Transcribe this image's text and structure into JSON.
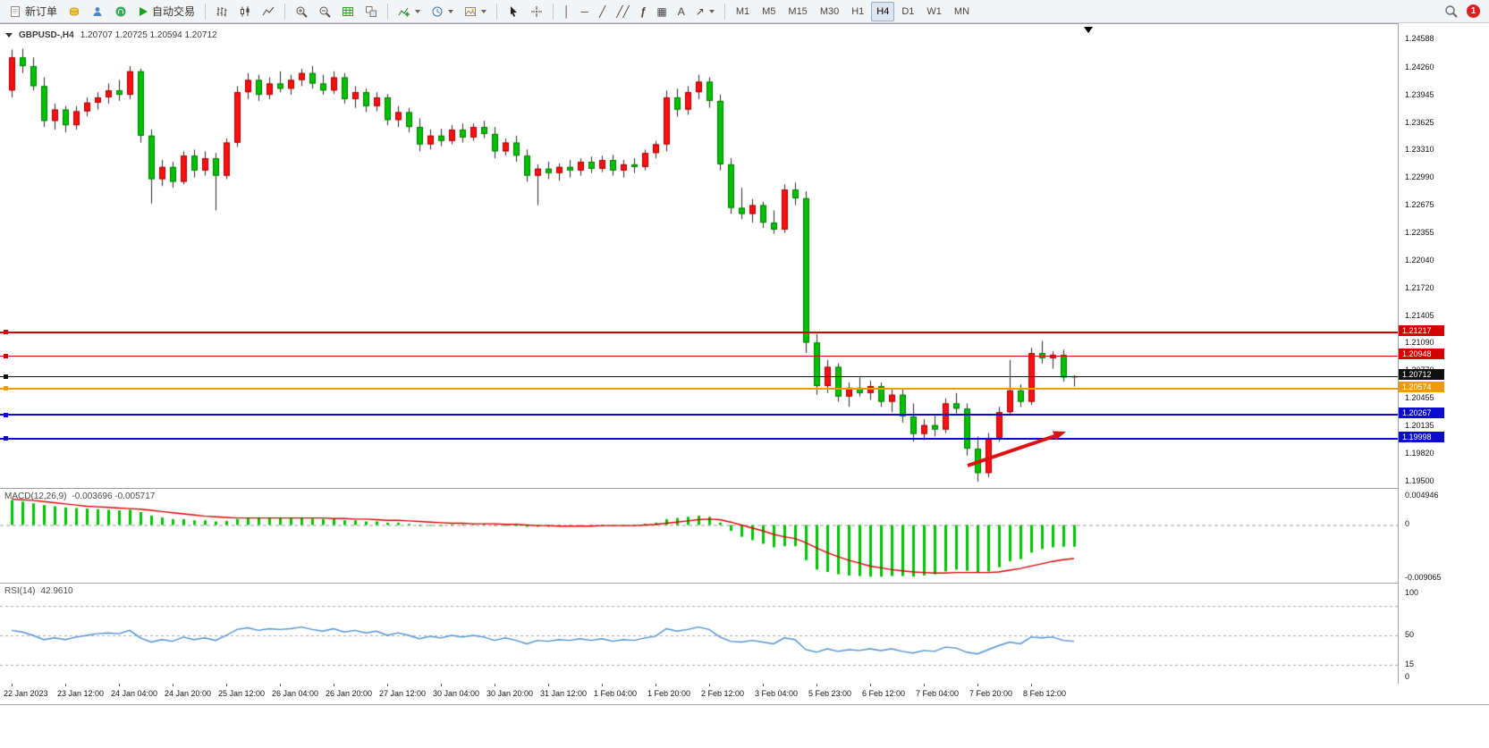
{
  "toolbar": {
    "new_order": "新订单",
    "auto_trading": "自动交易",
    "timeframes": [
      "M1",
      "M5",
      "M15",
      "M30",
      "H1",
      "H4",
      "D1",
      "W1",
      "MN"
    ],
    "active_timeframe": "H4",
    "notification_badge": "1"
  },
  "icons": {
    "vertical_line_glyph": "│",
    "horizontal_line_glyph": "─",
    "trendline_glyph": "╱",
    "channel_glyph": "╱╱",
    "fibonacci_glyph": "ƒ",
    "grid_glyph": "▦",
    "text_glyph": "A",
    "arrow_glyph": "↗"
  },
  "colors": {
    "bull": "#fe1010",
    "bear": "#00c400",
    "bull_border": "#a00000",
    "bear_border": "#007800",
    "wick": "#2a2a2a"
  },
  "chart_data": [
    {
      "type": "candlestick",
      "title": "GBPUSD-,H4",
      "ohlc_text": "1.20707 1.20725 1.20594 1.20712",
      "ylim": [
        1.195,
        1.24588
      ],
      "y_ticks": [
        "1.24588",
        "1.24260",
        "1.23945",
        "1.23625",
        "1.23310",
        "1.22990",
        "1.22675",
        "1.22355",
        "1.22040",
        "1.21720",
        "1.21405",
        "1.21090",
        "1.20770",
        "1.20455",
        "1.20135",
        "1.19820",
        "1.19500"
      ],
      "x_labels": [
        "22 Jan 2023",
        "23 Jan 12:00",
        "24 Jan 04:00",
        "24 Jan 20:00",
        "25 Jan 12:00",
        "26 Jan 04:00",
        "26 Jan 20:00",
        "27 Jan 12:00",
        "30 Jan 04:00",
        "30 Jan 20:00",
        "31 Jan 12:00",
        "1 Feb 04:00",
        "1 Feb 20:00",
        "2 Feb 12:00",
        "3 Feb 04:00",
        "5 Feb 23:00",
        "6 Feb 12:00",
        "7 Feb 04:00",
        "7 Feb 20:00",
        "8 Feb 12:00"
      ],
      "candles": [
        [
          1.24,
          1.2447,
          1.2392,
          1.2438
        ],
        [
          1.2438,
          1.2448,
          1.242,
          1.2428
        ],
        [
          1.2428,
          1.2438,
          1.24,
          1.2405
        ],
        [
          1.2405,
          1.2415,
          1.2358,
          1.2365
        ],
        [
          1.2365,
          1.2385,
          1.2355,
          1.2378
        ],
        [
          1.2378,
          1.2382,
          1.2352,
          1.236
        ],
        [
          1.236,
          1.2382,
          1.2355,
          1.2376
        ],
        [
          1.2376,
          1.2392,
          1.237,
          1.2386
        ],
        [
          1.2386,
          1.2398,
          1.2378,
          1.2392
        ],
        [
          1.2392,
          1.2408,
          1.2385,
          1.24
        ],
        [
          1.24,
          1.2412,
          1.2388,
          1.2395
        ],
        [
          1.2395,
          1.2428,
          1.239,
          1.2422
        ],
        [
          1.2422,
          1.2425,
          1.234,
          1.2348
        ],
        [
          1.2348,
          1.2355,
          1.227,
          1.2298
        ],
        [
          1.2298,
          1.232,
          1.229,
          1.2312
        ],
        [
          1.2312,
          1.2318,
          1.2288,
          1.2295
        ],
        [
          1.2295,
          1.233,
          1.2292,
          1.2325
        ],
        [
          1.2325,
          1.2332,
          1.23,
          1.2308
        ],
        [
          1.2308,
          1.233,
          1.2302,
          1.2322
        ],
        [
          1.2322,
          1.2328,
          1.2262,
          1.2302
        ],
        [
          1.2302,
          1.2345,
          1.2298,
          1.234
        ],
        [
          1.234,
          1.2405,
          1.2335,
          1.2398
        ],
        [
          1.2398,
          1.242,
          1.239,
          1.2412
        ],
        [
          1.2412,
          1.2418,
          1.2388,
          1.2395
        ],
        [
          1.2395,
          1.2415,
          1.239,
          1.2408
        ],
        [
          1.2408,
          1.2422,
          1.2398,
          1.2402
        ],
        [
          1.2402,
          1.2418,
          1.2395,
          1.2412
        ],
        [
          1.2412,
          1.2425,
          1.2405,
          1.242
        ],
        [
          1.242,
          1.2428,
          1.2402,
          1.2408
        ],
        [
          1.2408,
          1.2418,
          1.2395,
          1.24
        ],
        [
          1.24,
          1.2422,
          1.2396,
          1.2415
        ],
        [
          1.2415,
          1.242,
          1.2385,
          1.239
        ],
        [
          1.239,
          1.2405,
          1.238,
          1.2398
        ],
        [
          1.2398,
          1.2402,
          1.2375,
          1.2382
        ],
        [
          1.2382,
          1.2398,
          1.2376,
          1.2392
        ],
        [
          1.2392,
          1.2396,
          1.236,
          1.2366
        ],
        [
          1.2366,
          1.2382,
          1.2358,
          1.2375
        ],
        [
          1.2375,
          1.238,
          1.2352,
          1.2358
        ],
        [
          1.2358,
          1.2368,
          1.233,
          1.2338
        ],
        [
          1.2338,
          1.2355,
          1.2332,
          1.2348
        ],
        [
          1.2348,
          1.2356,
          1.2336,
          1.2342
        ],
        [
          1.2342,
          1.236,
          1.2338,
          1.2355
        ],
        [
          1.2355,
          1.2362,
          1.234,
          1.2346
        ],
        [
          1.2346,
          1.2362,
          1.2342,
          1.2358
        ],
        [
          1.2358,
          1.2365,
          1.2345,
          1.235
        ],
        [
          1.235,
          1.2358,
          1.2322,
          1.233
        ],
        [
          1.233,
          1.2345,
          1.2325,
          1.234
        ],
        [
          1.234,
          1.2348,
          1.2318,
          1.2325
        ],
        [
          1.2325,
          1.2332,
          1.2295,
          1.2302
        ],
        [
          1.2302,
          1.2315,
          1.2268,
          1.231
        ],
        [
          1.231,
          1.2318,
          1.2298,
          1.2305
        ],
        [
          1.2305,
          1.2316,
          1.2296,
          1.2312
        ],
        [
          1.2312,
          1.232,
          1.23,
          1.2308
        ],
        [
          1.2308,
          1.2322,
          1.2302,
          1.2318
        ],
        [
          1.2318,
          1.2324,
          1.2305,
          1.231
        ],
        [
          1.231,
          1.2325,
          1.2306,
          1.232
        ],
        [
          1.232,
          1.2326,
          1.2302,
          1.2308
        ],
        [
          1.2308,
          1.232,
          1.23,
          1.2315
        ],
        [
          1.2315,
          1.2322,
          1.2305,
          1.2312
        ],
        [
          1.2312,
          1.2332,
          1.2308,
          1.2328
        ],
        [
          1.2328,
          1.2342,
          1.2322,
          1.2338
        ],
        [
          1.2338,
          1.24,
          1.233,
          1.2392
        ],
        [
          1.2392,
          1.2402,
          1.237,
          1.2378
        ],
        [
          1.2378,
          1.2405,
          1.2372,
          1.2398
        ],
        [
          1.2398,
          1.2418,
          1.239,
          1.241
        ],
        [
          1.241,
          1.2415,
          1.238,
          1.2388
        ],
        [
          1.2388,
          1.2395,
          1.2308,
          1.2315
        ],
        [
          1.2315,
          1.2322,
          1.2258,
          1.2265
        ],
        [
          1.2265,
          1.2288,
          1.2252,
          1.2258
        ],
        [
          1.2258,
          1.2275,
          1.2248,
          1.2268
        ],
        [
          1.2268,
          1.2272,
          1.2242,
          1.2248
        ],
        [
          1.2248,
          1.2262,
          1.2235,
          1.224
        ],
        [
          1.224,
          1.2292,
          1.2236,
          1.2286
        ],
        [
          1.2286,
          1.2294,
          1.2268,
          1.2276
        ],
        [
          1.2276,
          1.2284,
          1.2098,
          1.211
        ],
        [
          1.211,
          1.212,
          1.205,
          1.206
        ],
        [
          1.206,
          1.209,
          1.2052,
          1.2082
        ],
        [
          1.2082,
          1.2086,
          1.2042,
          1.2048
        ],
        [
          1.2048,
          1.2064,
          1.2036,
          1.2058
        ],
        [
          1.2058,
          1.207,
          1.2048,
          1.2052
        ],
        [
          1.2052,
          1.2066,
          1.2044,
          1.206
        ],
        [
          1.206,
          1.2064,
          1.2036,
          1.2042
        ],
        [
          1.2042,
          1.2056,
          1.203,
          1.205
        ],
        [
          1.205,
          1.2058,
          1.2018,
          1.2025
        ],
        [
          1.2025,
          1.204,
          1.1996,
          1.2005
        ],
        [
          1.2005,
          1.2022,
          1.1998,
          1.2015
        ],
        [
          1.2015,
          1.2026,
          1.2002,
          1.201
        ],
        [
          1.201,
          1.2046,
          1.2006,
          1.204
        ],
        [
          1.204,
          1.2052,
          1.2028,
          1.2034
        ],
        [
          1.2034,
          1.204,
          1.198,
          1.1988
        ],
        [
          1.1988,
          1.2002,
          1.195,
          1.196
        ],
        [
          1.196,
          1.2006,
          1.1955,
          1.2
        ],
        [
          1.2,
          1.2036,
          1.1996,
          1.203
        ],
        [
          1.203,
          1.209,
          1.2026,
          1.2055
        ],
        [
          1.2055,
          1.2062,
          1.2036,
          1.2042
        ],
        [
          1.2042,
          1.2104,
          1.2038,
          1.2098
        ],
        [
          1.2098,
          1.2112,
          1.2086,
          1.2092
        ],
        [
          1.2092,
          1.21,
          1.208,
          1.2096
        ],
        [
          1.2096,
          1.2102,
          1.2065,
          1.207
        ],
        [
          1.20707,
          1.20725,
          1.20594,
          1.20712
        ]
      ],
      "horizontal_lines": [
        {
          "price": 1.21217,
          "label": "1.21217",
          "color": "#d40000",
          "width": 2
        },
        {
          "price": 1.20948,
          "label": "1.20948",
          "color": "#d40000",
          "width": 1
        },
        {
          "price": 1.20712,
          "label": "1.20712",
          "color": "#101010",
          "width": 1
        },
        {
          "price": 1.20574,
          "label": "1.20574",
          "color": "#f09c00",
          "width": 2
        },
        {
          "price": 1.20267,
          "label": "1.20267",
          "color": "#0a0ad0",
          "width": 2
        },
        {
          "price": 1.19998,
          "label": "1.19998",
          "color": "#0a0ad0",
          "width": 2
        }
      ],
      "annotations": [
        {
          "type": "arrow",
          "color": "#e01010",
          "direction": "up-right"
        }
      ]
    },
    {
      "type": "bar",
      "name": "MACD(12,26,9)",
      "values_display": "-0.003696 -0.005717",
      "ylim": [
        -0.009065,
        0.004946
      ],
      "y_ticks": [
        "0.004946",
        "0",
        "-0.009065"
      ],
      "histogram_color": "#00c400",
      "histogram": [
        0.0042,
        0.004,
        0.0037,
        0.0034,
        0.0032,
        0.003,
        0.0029,
        0.0028,
        0.0027,
        0.0026,
        0.0025,
        0.0026,
        0.0022,
        0.0016,
        0.0013,
        0.001,
        0.001,
        0.0008,
        0.0008,
        0.0006,
        0.0007,
        0.001,
        0.0012,
        0.0012,
        0.0012,
        0.0012,
        0.0012,
        0.0012,
        0.0011,
        0.001,
        0.001,
        0.0008,
        0.0008,
        0.0006,
        0.0006,
        0.0004,
        0.0004,
        0.0002,
        0.0,
        0.0,
        0.0,
        0.0001,
        0.0001,
        0.0002,
        0.0002,
        0.0,
        0.0,
        -0.0001,
        -0.0003,
        -0.0003,
        -0.0003,
        -0.0002,
        -0.0002,
        -0.0001,
        -0.0001,
        0.0,
        -0.0001,
        0.0,
        0.0,
        0.0002,
        0.0004,
        0.001,
        0.0012,
        0.0014,
        0.0016,
        0.0014,
        0.0004,
        -0.001,
        -0.002,
        -0.0026,
        -0.0032,
        -0.0038,
        -0.0036,
        -0.0036,
        -0.006,
        -0.0076,
        -0.008,
        -0.0084,
        -0.0086,
        -0.0087,
        -0.0088,
        -0.0088,
        -0.0087,
        -0.0087,
        -0.0088,
        -0.0086,
        -0.0084,
        -0.0079,
        -0.0076,
        -0.0078,
        -0.0081,
        -0.0079,
        -0.0072,
        -0.0062,
        -0.0058,
        -0.0047,
        -0.0041,
        -0.0038,
        -0.0037,
        -0.003696
      ],
      "series": [
        {
          "name": "signal",
          "color": "#dd0000",
          "values": [
            0.0044,
            0.0043,
            0.0042,
            0.004,
            0.0038,
            0.0036,
            0.0034,
            0.0032,
            0.0031,
            0.003,
            0.0029,
            0.0028,
            0.0027,
            0.0025,
            0.0023,
            0.0021,
            0.0019,
            0.0017,
            0.0015,
            0.0014,
            0.0013,
            0.0012,
            0.0012,
            0.0012,
            0.0012,
            0.0012,
            0.0012,
            0.0012,
            0.0012,
            0.0012,
            0.0011,
            0.0011,
            0.001,
            0.001,
            0.0009,
            0.0008,
            0.0008,
            0.0007,
            0.0006,
            0.0005,
            0.0004,
            0.0003,
            0.0003,
            0.0002,
            0.0002,
            0.0002,
            0.0001,
            0.0001,
            0.0,
            -0.0001,
            -0.0001,
            -0.0002,
            -0.0002,
            -0.0002,
            -0.0002,
            -0.0001,
            -0.0001,
            -0.0001,
            -0.0001,
            0.0,
            0.0001,
            0.0003,
            0.0005,
            0.0007,
            0.0009,
            0.001,
            0.0009,
            0.0005,
            0.0,
            -0.0005,
            -0.001,
            -0.0016,
            -0.002,
            -0.0023,
            -0.003,
            -0.0039,
            -0.0047,
            -0.0054,
            -0.006,
            -0.0065,
            -0.007,
            -0.0073,
            -0.0076,
            -0.0078,
            -0.008,
            -0.0081,
            -0.0082,
            -0.0082,
            -0.0081,
            -0.0081,
            -0.0081,
            -0.0081,
            -0.008,
            -0.0077,
            -0.0074,
            -0.007,
            -0.0066,
            -0.0062,
            -0.0059,
            -0.005717
          ]
        }
      ]
    },
    {
      "type": "line",
      "name": "RSI(14)",
      "value_display": "42.9610",
      "ylim": [
        0,
        100
      ],
      "y_ticks": [
        "100",
        "50",
        "15",
        "0"
      ],
      "levels": [
        85,
        50,
        15
      ],
      "color": "#4d8fd1",
      "values": [
        56,
        54,
        50,
        45,
        47,
        45,
        48,
        50,
        52,
        53,
        52,
        56,
        47,
        42,
        45,
        43,
        48,
        45,
        47,
        44,
        50,
        57,
        59,
        56,
        58,
        57,
        58,
        60,
        57,
        55,
        58,
        54,
        56,
        53,
        55,
        50,
        53,
        50,
        46,
        49,
        47,
        50,
        48,
        50,
        48,
        44,
        47,
        44,
        40,
        44,
        43,
        45,
        44,
        46,
        44,
        46,
        43,
        45,
        44,
        47,
        49,
        58,
        55,
        57,
        60,
        57,
        48,
        43,
        42,
        44,
        42,
        40,
        47,
        45,
        33,
        30,
        34,
        31,
        33,
        32,
        34,
        32,
        34,
        31,
        29,
        32,
        31,
        36,
        35,
        30,
        28,
        33,
        38,
        42,
        40,
        48,
        47,
        48,
        44,
        42.96
      ]
    }
  ]
}
